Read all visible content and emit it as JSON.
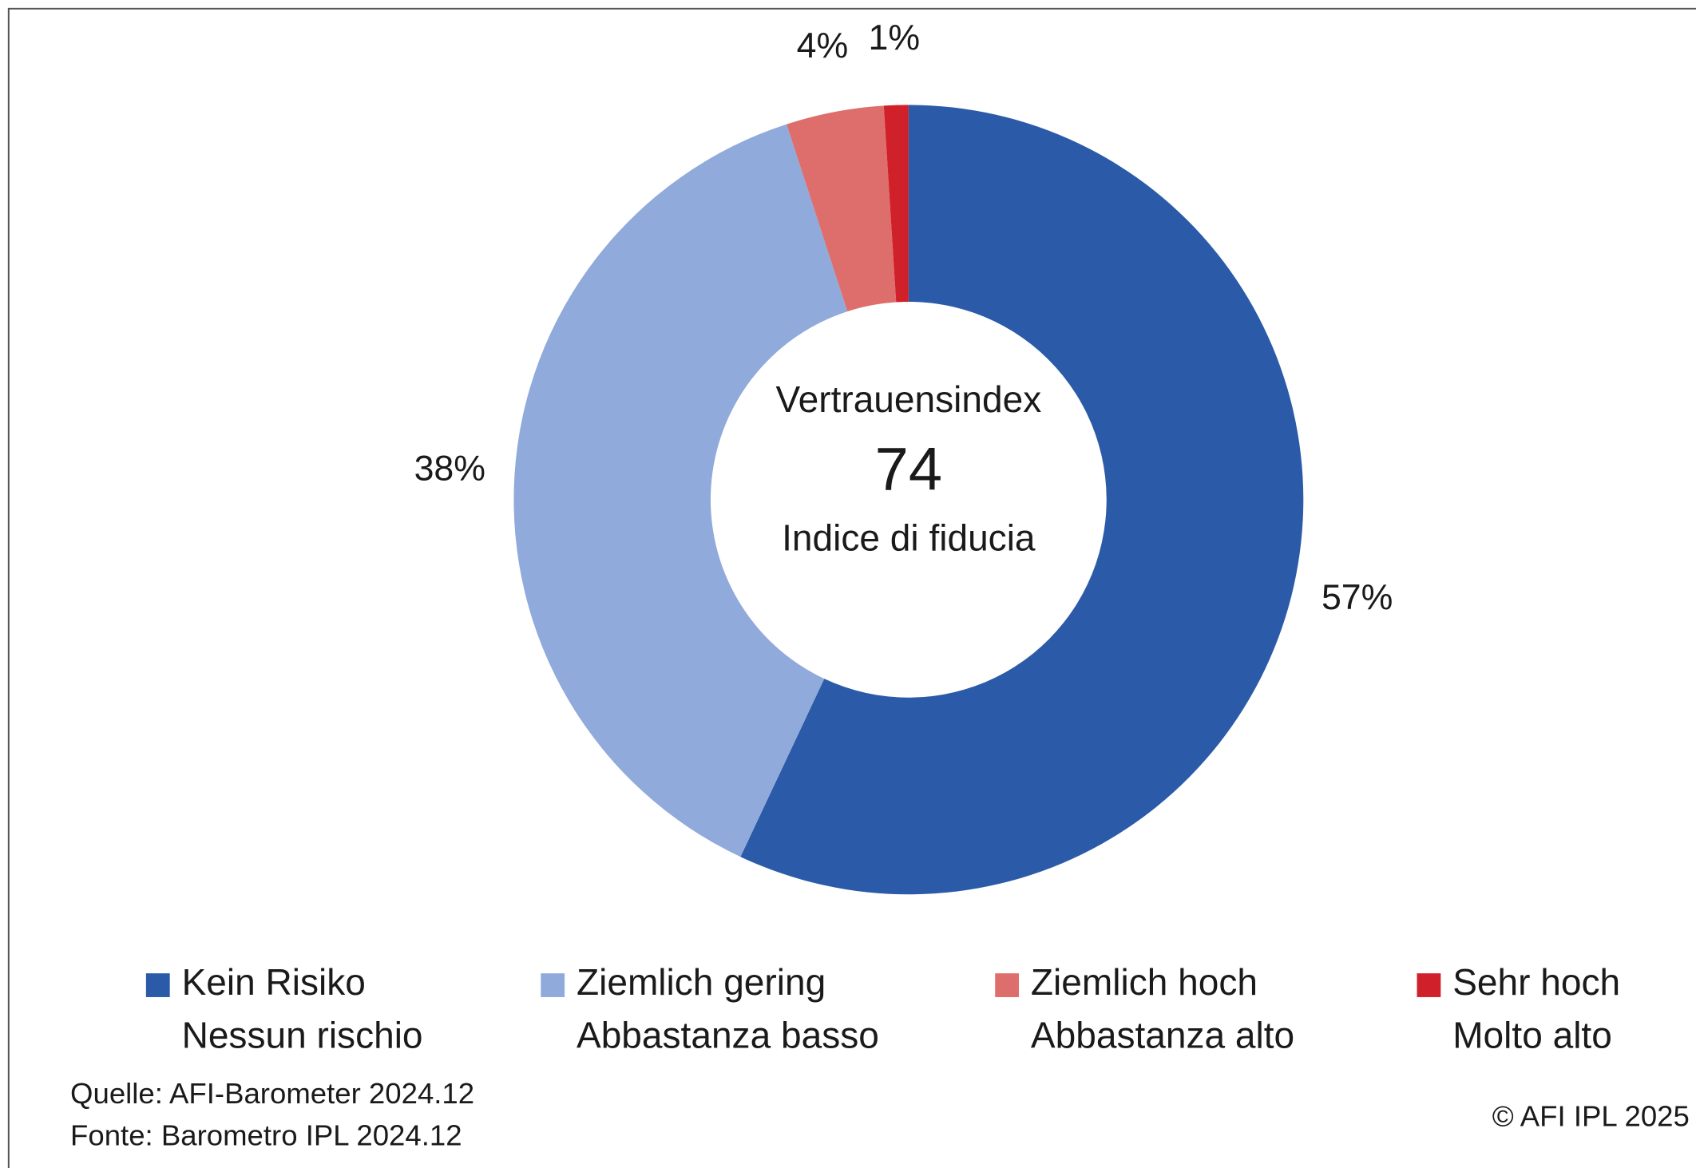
{
  "chart_data": {
    "type": "donut",
    "center_title": "Vertrauensindex",
    "center_value": 74,
    "center_subtitle": "Indice di fiducia",
    "categories": [
      [
        "Kein Risiko",
        "Nessun rischio"
      ],
      [
        "Ziemlich gering",
        "Abbastanza basso"
      ],
      [
        "Ziemlich hoch",
        "Abbastanza alto"
      ],
      [
        "Sehr hoch",
        "Molto alto"
      ]
    ],
    "values": [
      57,
      38,
      4,
      1
    ],
    "value_labels": [
      "57%",
      "38%",
      "4%",
      "1%"
    ],
    "colors": [
      "#2b5ba8",
      "#90aadb",
      "#de6e6b",
      "#d0202a"
    ],
    "source": [
      "Quelle: AFI-Barometer 2024.12",
      "Fonte: Barometro IPL 2024.12"
    ],
    "copyright": "© AFI IPL 2025"
  }
}
